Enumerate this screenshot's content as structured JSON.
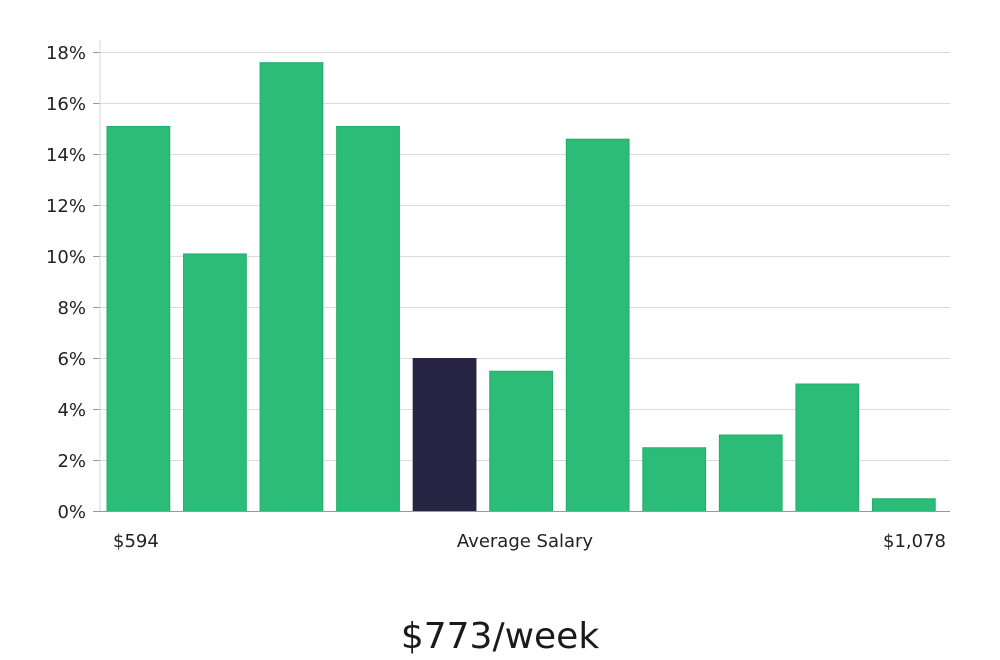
{
  "chart_data": {
    "type": "bar",
    "ylim": [
      0,
      18
    ],
    "y_ticks": [
      0,
      2,
      4,
      6,
      8,
      10,
      12,
      14,
      16,
      18
    ],
    "y_tick_format": "%",
    "grid": true,
    "values": [
      15.1,
      10.1,
      17.6,
      15.1,
      6.0,
      5.5,
      14.6,
      2.5,
      3.0,
      5.0,
      0.5
    ],
    "highlight_index": 4,
    "x_labels": {
      "min": "$594",
      "middle": "Average Salary",
      "max": "$1,078"
    },
    "summary_value": "$773/week"
  },
  "colors": {
    "bar": "#2bbd77",
    "bar_border": "#22ad6a",
    "highlight": "#272444",
    "grid": "#dcdcdc",
    "axis": "#999999"
  }
}
